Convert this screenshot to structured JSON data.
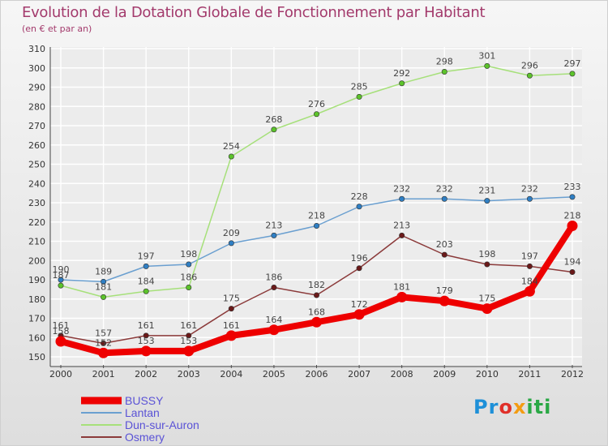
{
  "title": "Evolution de la Dotation Globale de Fonctionnement par Habitant",
  "subtitle": "(en € et par an)",
  "logo": "Proxiti",
  "chart_data": {
    "type": "line",
    "x": [
      2000,
      2001,
      2002,
      2003,
      2004,
      2005,
      2006,
      2007,
      2008,
      2009,
      2010,
      2011,
      2012
    ],
    "ylim": [
      150,
      310
    ],
    "yticks": [
      150,
      160,
      170,
      180,
      190,
      200,
      210,
      220,
      230,
      240,
      250,
      260,
      270,
      280,
      290,
      300,
      310
    ],
    "grid": true,
    "legend_position": "bottom-left",
    "series": [
      {
        "name": "BUSSY",
        "color": "#ee0000",
        "marker": "#ee0000",
        "values": [
          158,
          152,
          153,
          153,
          161,
          164,
          168,
          172,
          181,
          179,
          175,
          184,
          218
        ]
      },
      {
        "name": "Lantan",
        "color": "#6a9fd0",
        "marker": "#2f7fc4",
        "values": [
          190,
          189,
          197,
          198,
          209,
          213,
          218,
          228,
          232,
          232,
          231,
          232,
          233
        ]
      },
      {
        "name": "Dun-sur-Auron",
        "color": "#a6e07a",
        "marker": "#5cc32b",
        "values": [
          187,
          181,
          184,
          186,
          254,
          268,
          276,
          285,
          292,
          298,
          301,
          296,
          297
        ]
      },
      {
        "name": "Osmery",
        "color": "#8b3a3a",
        "marker": "#6b1a1a",
        "values": [
          161,
          157,
          161,
          161,
          175,
          186,
          182,
          196,
          213,
          203,
          198,
          197,
          194
        ]
      }
    ]
  }
}
